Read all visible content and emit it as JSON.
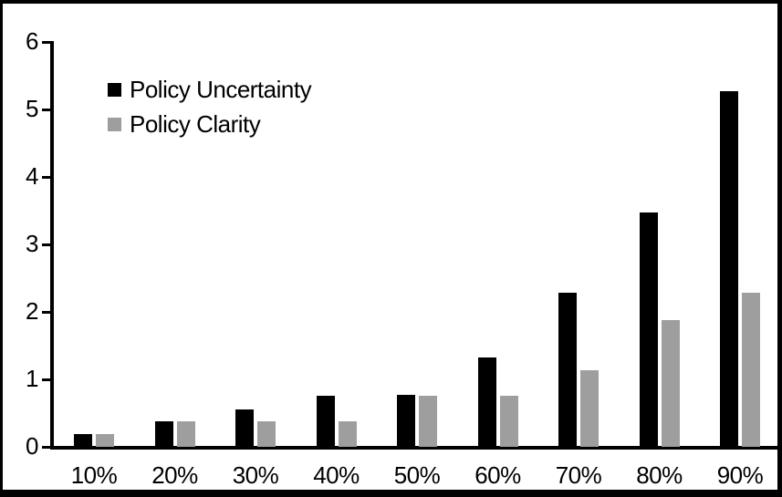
{
  "chart_data": {
    "type": "bar",
    "title": "",
    "xlabel": "",
    "ylabel": "",
    "categories": [
      "10%",
      "20%",
      "30%",
      "40%",
      "50%",
      "60%",
      "70%",
      "80%",
      "90%"
    ],
    "series": [
      {
        "name": "Policy Uncertainty",
        "color": "#000000",
        "values": [
          0.19,
          0.38,
          0.56,
          0.75,
          0.77,
          1.32,
          2.29,
          3.47,
          5.27
        ]
      },
      {
        "name": "Policy Clarity",
        "color": "#9E9E9E",
        "values": [
          0.19,
          0.38,
          0.38,
          0.38,
          0.76,
          0.76,
          1.14,
          1.88,
          2.28
        ]
      }
    ],
    "ylim": [
      0,
      6
    ],
    "y_ticks": [
      0,
      1,
      2,
      3,
      4,
      5,
      6
    ],
    "grid": false,
    "legend_position": "top-left-inside",
    "plot_background": "#ffffff",
    "axis_color": "#000000"
  }
}
